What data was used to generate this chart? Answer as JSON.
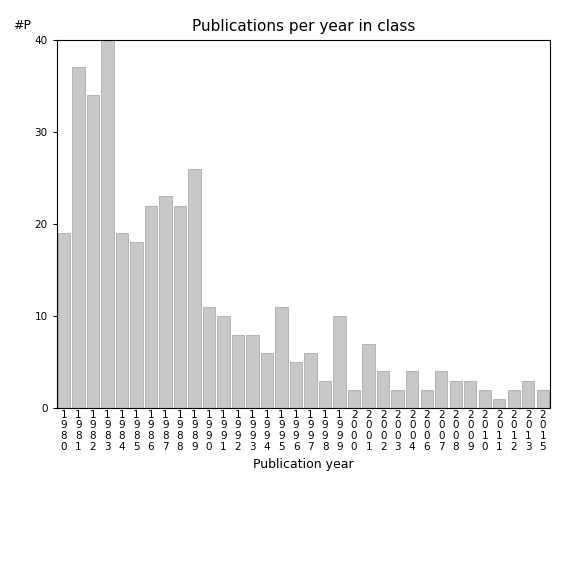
{
  "title": "Publications per year in class",
  "xlabel": "Publication year",
  "ylabel": "#P",
  "bar_color": "#c8c8c8",
  "bar_edgecolor": "#a0a0a0",
  "years": [
    "1980",
    "1981",
    "1982",
    "1983",
    "1984",
    "1985",
    "1986",
    "1987",
    "1988",
    "1989",
    "1990",
    "1991",
    "1992",
    "1993",
    "1994",
    "1995",
    "1996",
    "1997",
    "1998",
    "1999",
    "2000",
    "2001",
    "2002",
    "2003",
    "2004",
    "2006",
    "2007",
    "2008",
    "2009",
    "2010",
    "2011",
    "2012",
    "2013",
    "2015"
  ],
  "values": [
    19,
    37,
    34,
    40,
    19,
    18,
    22,
    23,
    22,
    26,
    11,
    10,
    8,
    8,
    6,
    11,
    5,
    6,
    3,
    10,
    2,
    7,
    4,
    2,
    4,
    2,
    4,
    3,
    3,
    2,
    1,
    2,
    3,
    2
  ],
  "ylim": [
    0,
    40
  ],
  "yticks": [
    0,
    10,
    20,
    30,
    40
  ],
  "background_color": "#ffffff",
  "title_fontsize": 11,
  "label_fontsize": 9,
  "tick_fontsize": 7.5
}
